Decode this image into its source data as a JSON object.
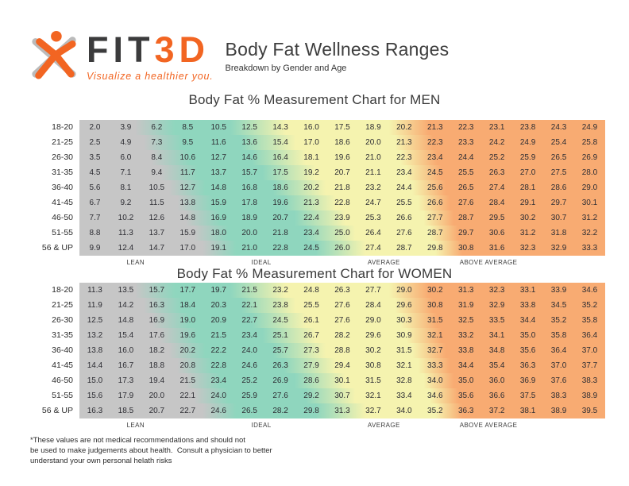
{
  "header": {
    "brand": {
      "fit": "FIT",
      "threeD": "3D",
      "tagline": "Visualize a healthier you."
    },
    "title": "Body Fat Wellness Ranges",
    "subtitle": "Breakdown by Gender and Age"
  },
  "colors": {
    "accent_orange": "#F26522",
    "logo_gray": "#BBBBBB",
    "brand_text_dark": "#3B3B3C",
    "band_gray": "#C6C6C6",
    "band_teal": "#8FD6BE",
    "band_yellow": "#F5F3AF",
    "band_orange": "#F8AB72"
  },
  "chart_data": [
    {
      "type": "heatmap",
      "title": "Body Fat % Measurement Chart for MEN",
      "unit": "% body fat",
      "rows": [
        "18-20",
        "21-25",
        "26-30",
        "31-35",
        "36-40",
        "41-45",
        "46-50",
        "51-55",
        "56 & UP"
      ],
      "values": [
        [
          "2.0",
          "3.9",
          "6.2",
          "8.5",
          "10.5",
          "12.5",
          "14.3",
          "16.0",
          "17.5",
          "18.9",
          "20.2",
          "21.3",
          "22.3",
          "23.1",
          "23.8",
          "24.3",
          "24.9"
        ],
        [
          "2.5",
          "4.9",
          "7.3",
          "9.5",
          "11.6",
          "13.6",
          "15.4",
          "17.0",
          "18.6",
          "20.0",
          "21.3",
          "22.3",
          "23.3",
          "24.2",
          "24.9",
          "25.4",
          "25.8"
        ],
        [
          "3.5",
          "6.0",
          "8.4",
          "10.6",
          "12.7",
          "14.6",
          "16.4",
          "18.1",
          "19.6",
          "21.0",
          "22.3",
          "23.4",
          "24.4",
          "25.2",
          "25.9",
          "26.5",
          "26.9"
        ],
        [
          "4.5",
          "7.1",
          "9.4",
          "11.7",
          "13.7",
          "15.7",
          "17.5",
          "19.2",
          "20.7",
          "21.1",
          "23.4",
          "24.5",
          "25.5",
          "26.3",
          "27.0",
          "27.5",
          "28.0"
        ],
        [
          "5.6",
          "8.1",
          "10.5",
          "12.7",
          "14.8",
          "16.8",
          "18.6",
          "20.2",
          "21.8",
          "23.2",
          "24.4",
          "25.6",
          "26.5",
          "27.4",
          "28.1",
          "28.6",
          "29.0"
        ],
        [
          "6.7",
          "9.2",
          "11.5",
          "13.8",
          "15.9",
          "17.8",
          "19.6",
          "21.3",
          "22.8",
          "24.7",
          "25.5",
          "26.6",
          "27.6",
          "28.4",
          "29.1",
          "29.7",
          "30.1"
        ],
        [
          "7.7",
          "10.2",
          "12.6",
          "14.8",
          "16.9",
          "18.9",
          "20.7",
          "22.4",
          "23.9",
          "25.3",
          "26.6",
          "27.7",
          "28.7",
          "29.5",
          "30.2",
          "30.7",
          "31.2"
        ],
        [
          "8.8",
          "11.3",
          "13.7",
          "15.9",
          "18.0",
          "20.0",
          "21.8",
          "23.4",
          "25.0",
          "26.4",
          "27.6",
          "28.7",
          "29.7",
          "30.6",
          "31.2",
          "31.8",
          "32.2"
        ],
        [
          "9.9",
          "12.4",
          "14.7",
          "17.0",
          "19.1",
          "21.0",
          "22.8",
          "24.5",
          "26.0",
          "27.4",
          "28.7",
          "29.8",
          "30.8",
          "31.6",
          "32.3",
          "32.9",
          "33.3"
        ]
      ],
      "categories": [
        "LEAN",
        "IDEAL",
        "AVERAGE",
        "ABOVE AVERAGE"
      ],
      "category_positions_pct": [
        10.7,
        34.6,
        57.9,
        77.8
      ],
      "value_range": [
        2.0,
        33.3
      ]
    },
    {
      "type": "heatmap",
      "title": "Body Fat % Measurement Chart for WOMEN",
      "unit": "% body fat",
      "rows": [
        "18-20",
        "21-25",
        "26-30",
        "31-35",
        "36-40",
        "41-45",
        "46-50",
        "51-55",
        "56 & UP"
      ],
      "values": [
        [
          "11.3",
          "13.5",
          "15.7",
          "17.7",
          "19.7",
          "21.5",
          "23.2",
          "24.8",
          "26.3",
          "27.7",
          "29.0",
          "30.2",
          "31.3",
          "32.3",
          "33.1",
          "33.9",
          "34.6"
        ],
        [
          "11.9",
          "14.2",
          "16.3",
          "18.4",
          "20.3",
          "22.1",
          "23.8",
          "25.5",
          "27.6",
          "28.4",
          "29.6",
          "30.8",
          "31.9",
          "32.9",
          "33.8",
          "34.5",
          "35.2"
        ],
        [
          "12.5",
          "14.8",
          "16.9",
          "19.0",
          "20.9",
          "22.7",
          "24.5",
          "26.1",
          "27.6",
          "29.0",
          "30.3",
          "31.5",
          "32.5",
          "33.5",
          "34.4",
          "35.2",
          "35.8"
        ],
        [
          "13.2",
          "15.4",
          "17.6",
          "19.6",
          "21.5",
          "23.4",
          "25.1",
          "26.7",
          "28.2",
          "29.6",
          "30.9",
          "32.1",
          "33.2",
          "34.1",
          "35.0",
          "35.8",
          "36.4"
        ],
        [
          "13.8",
          "16.0",
          "18.2",
          "20.2",
          "22.2",
          "24.0",
          "25.7",
          "27.3",
          "28.8",
          "30.2",
          "31.5",
          "32.7",
          "33.8",
          "34.8",
          "35.6",
          "36.4",
          "37.0"
        ],
        [
          "14.4",
          "16.7",
          "18.8",
          "20.8",
          "22.8",
          "24.6",
          "26.3",
          "27.9",
          "29.4",
          "30.8",
          "32.1",
          "33.3",
          "34.4",
          "35.4",
          "36.3",
          "37.0",
          "37.7"
        ],
        [
          "15.0",
          "17.3",
          "19.4",
          "21.5",
          "23.4",
          "25.2",
          "26.9",
          "28.6",
          "30.1",
          "31.5",
          "32.8",
          "34.0",
          "35.0",
          "36.0",
          "36.9",
          "37.6",
          "38.3"
        ],
        [
          "15.6",
          "17.9",
          "20.0",
          "22.1",
          "24.0",
          "25.9",
          "27.6",
          "29.2",
          "30.7",
          "32.1",
          "33.4",
          "34.6",
          "35.6",
          "36.6",
          "37.5",
          "38.3",
          "38.9"
        ],
        [
          "16.3",
          "18.5",
          "20.7",
          "22.7",
          "24.6",
          "26.5",
          "28.2",
          "29.8",
          "31.3",
          "32.7",
          "34.0",
          "35.2",
          "36.3",
          "37.2",
          "38.1",
          "38.9",
          "39.5"
        ]
      ],
      "categories": [
        "LEAN",
        "IDEAL",
        "AVERAGE",
        "ABOVE AVERAGE"
      ],
      "category_positions_pct": [
        10.7,
        34.6,
        57.9,
        77.8
      ],
      "value_range": [
        11.3,
        39.5
      ]
    }
  ],
  "footer": {
    "lines": [
      "*These values are not medical recommendations and should not",
      "be used to make judgements about health.  Consult a physician to better",
      "understand your own personal helath risks"
    ]
  }
}
